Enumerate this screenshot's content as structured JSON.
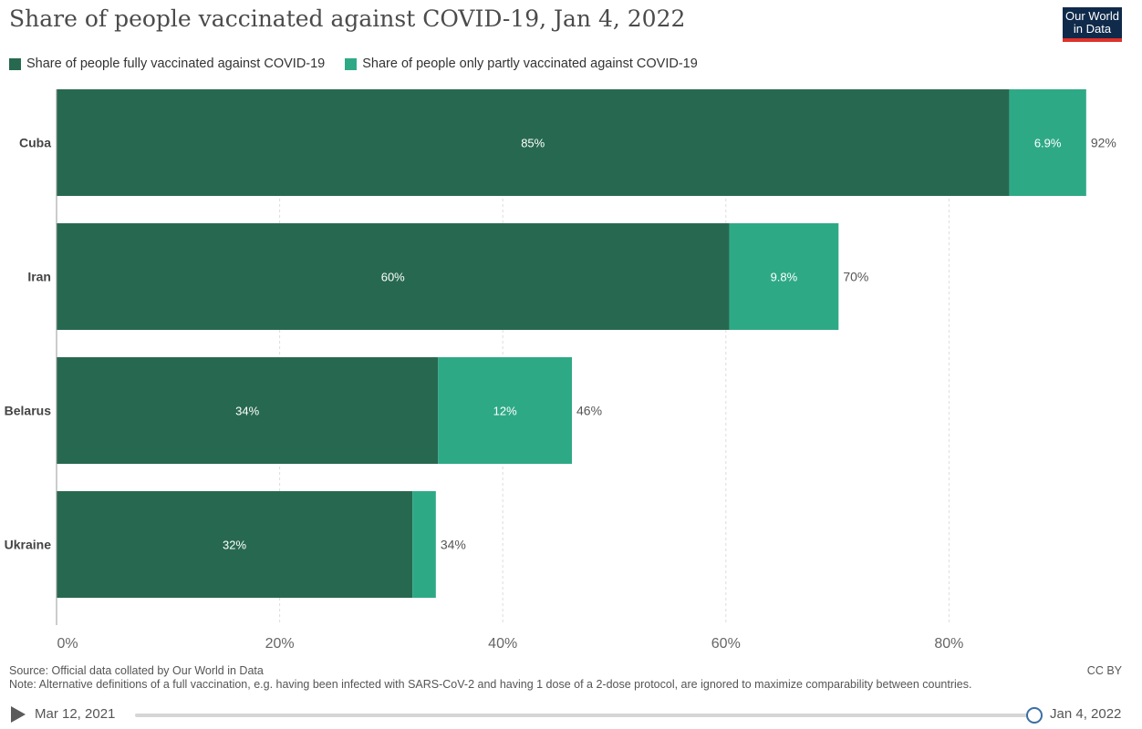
{
  "title": "Share of people vaccinated against COVID-19, Jan 4, 2022",
  "logo": {
    "line1": "Our World",
    "line2": "in Data"
  },
  "colors": {
    "full": "#276950",
    "partial": "#2ea986",
    "grid": "#dddddd",
    "axis": "#999999"
  },
  "chart_data": {
    "type": "bar",
    "orientation": "horizontal",
    "stacked": true,
    "categories": [
      "Cuba",
      "Iran",
      "Belarus",
      "Ukraine"
    ],
    "series": [
      {
        "name": "Share of people fully vaccinated against COVID-19",
        "values": [
          85.4,
          60.3,
          34.2,
          31.9
        ],
        "labels": [
          "85%",
          "60%",
          "34%",
          "32%"
        ]
      },
      {
        "name": "Share of people only partly vaccinated against COVID-19",
        "values": [
          6.9,
          9.8,
          12.0,
          2.1
        ],
        "labels": [
          "6.9%",
          "9.8%",
          "12%",
          ""
        ]
      }
    ],
    "totals": [
      "92%",
      "70%",
      "46%",
      "34%"
    ],
    "x_ticks": [
      0,
      20,
      40,
      60,
      80
    ],
    "x_tick_labels": [
      "0%",
      "20%",
      "40%",
      "60%",
      "80%"
    ],
    "xlim": [
      0,
      100
    ],
    "grid": true,
    "legend_position": "top-left"
  },
  "footer": {
    "source": "Source: Official data collated by Our World in Data",
    "note": "Note: Alternative definitions of a full vaccination, e.g. having been infected with SARS-CoV-2 and having 1 dose of a 2-dose protocol, are ignored to maximize comparability between countries.",
    "license": "CC BY"
  },
  "timeline": {
    "start": "Mar 12, 2021",
    "end": "Jan 4, 2022"
  }
}
